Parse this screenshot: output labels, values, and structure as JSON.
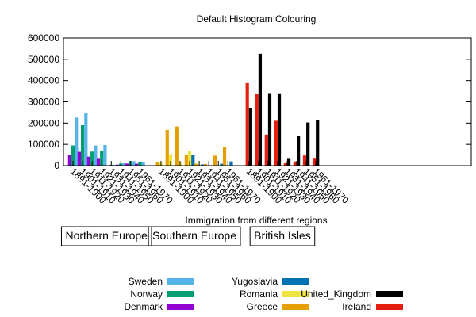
{
  "chart_data": {
    "type": "bar",
    "title": "Default Histogram Colouring",
    "xlabel": "Immigration from different regions",
    "ylabel": "",
    "ylim": [
      0,
      600000
    ],
    "yticks": [
      "0",
      "100000",
      "200000",
      "300000",
      "400000",
      "500000",
      "600000"
    ],
    "categories": [
      "1891-1900",
      "1901-1910",
      "1911-1920",
      "1921-1930",
      "1931-1940",
      "1941-1950",
      "1951-1960",
      "1961-1970"
    ],
    "legend_position": "bottom",
    "groups": [
      {
        "name": "Northern Europe",
        "series": [
          {
            "name": "Denmark",
            "color": "#9400d3",
            "values": [
              50000,
              65000,
              42000,
              32000,
              2000,
              5000,
              10000,
              9000
            ]
          },
          {
            "name": "Norway",
            "color": "#009e73",
            "values": [
              95000,
              190000,
              66000,
              68000,
              4000,
              10000,
              22000,
              15000
            ]
          },
          {
            "name": "Sweden",
            "color": "#56b4e9",
            "values": [
              226000,
              249000,
              95000,
              97000,
              4000,
              11000,
              21000,
              17000
            ]
          }
        ]
      },
      {
        "name": "Southern Europe",
        "series": [
          {
            "name": "Greece",
            "color": "#e69f00",
            "values": [
              16000,
              168000,
              184000,
              51000,
              9000,
              8000,
              47000,
              86000
            ]
          },
          {
            "name": "Romania",
            "color": "#f0e442",
            "values": [
              12000,
              54000,
              13000,
              67000,
              4000,
              1000,
              2000,
              2000
            ]
          },
          {
            "name": "Yugoslavia",
            "color": "#0072b2",
            "values": [
              0,
              0,
              1000,
              49000,
              6000,
              2000,
              9000,
              20000
            ]
          }
        ]
      },
      {
        "name": "British Isles",
        "series": [
          {
            "name": "Ireland",
            "color": "#e51e10",
            "values": [
              388000,
              339000,
              146000,
              211000,
              11000,
              20000,
              48000,
              33000
            ]
          },
          {
            "name": "United_Kingdom",
            "color": "#000000",
            "values": [
              272000,
              526000,
              341000,
              340000,
              32000,
              139000,
              203000,
              214000
            ]
          }
        ]
      }
    ]
  }
}
